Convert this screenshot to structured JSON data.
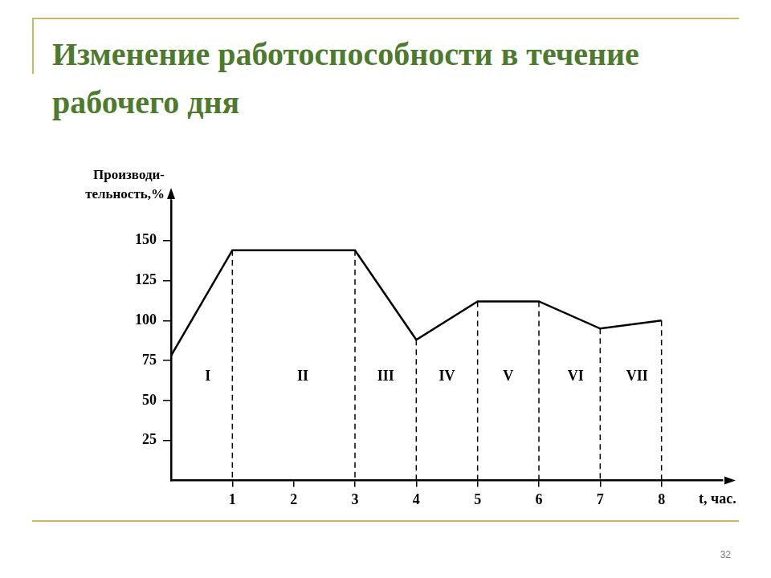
{
  "chart_data": {
    "type": "line",
    "title": "Изменение работоспособности в течение рабочего дня",
    "x_label": "t, час.",
    "y_label": "Производи-\nтельность,%",
    "x": [
      0,
      1,
      3,
      4,
      5,
      6,
      7,
      8
    ],
    "values": [
      78,
      144,
      144,
      88,
      112,
      112,
      95,
      100
    ],
    "color": "#000000",
    "xlim": [
      0,
      9
    ],
    "xticks": [
      1,
      2,
      3,
      4,
      5,
      6,
      7,
      8
    ],
    "ylim": [
      0,
      175
    ],
    "yticks": [
      25,
      50,
      75,
      100,
      125,
      150
    ],
    "grid": false,
    "annotations": [
      {
        "text": "I",
        "x": 0.6,
        "y": 65
      },
      {
        "text": "II",
        "x": 2.15,
        "y": 65
      },
      {
        "text": "III",
        "x": 3.5,
        "y": 65
      },
      {
        "text": "IV",
        "x": 4.5,
        "y": 65
      },
      {
        "text": "V",
        "x": 5.5,
        "y": 65
      },
      {
        "text": "VI",
        "x": 6.6,
        "y": 65
      },
      {
        "text": "VII",
        "x": 7.6,
        "y": 65
      }
    ],
    "page_number": "32"
  }
}
